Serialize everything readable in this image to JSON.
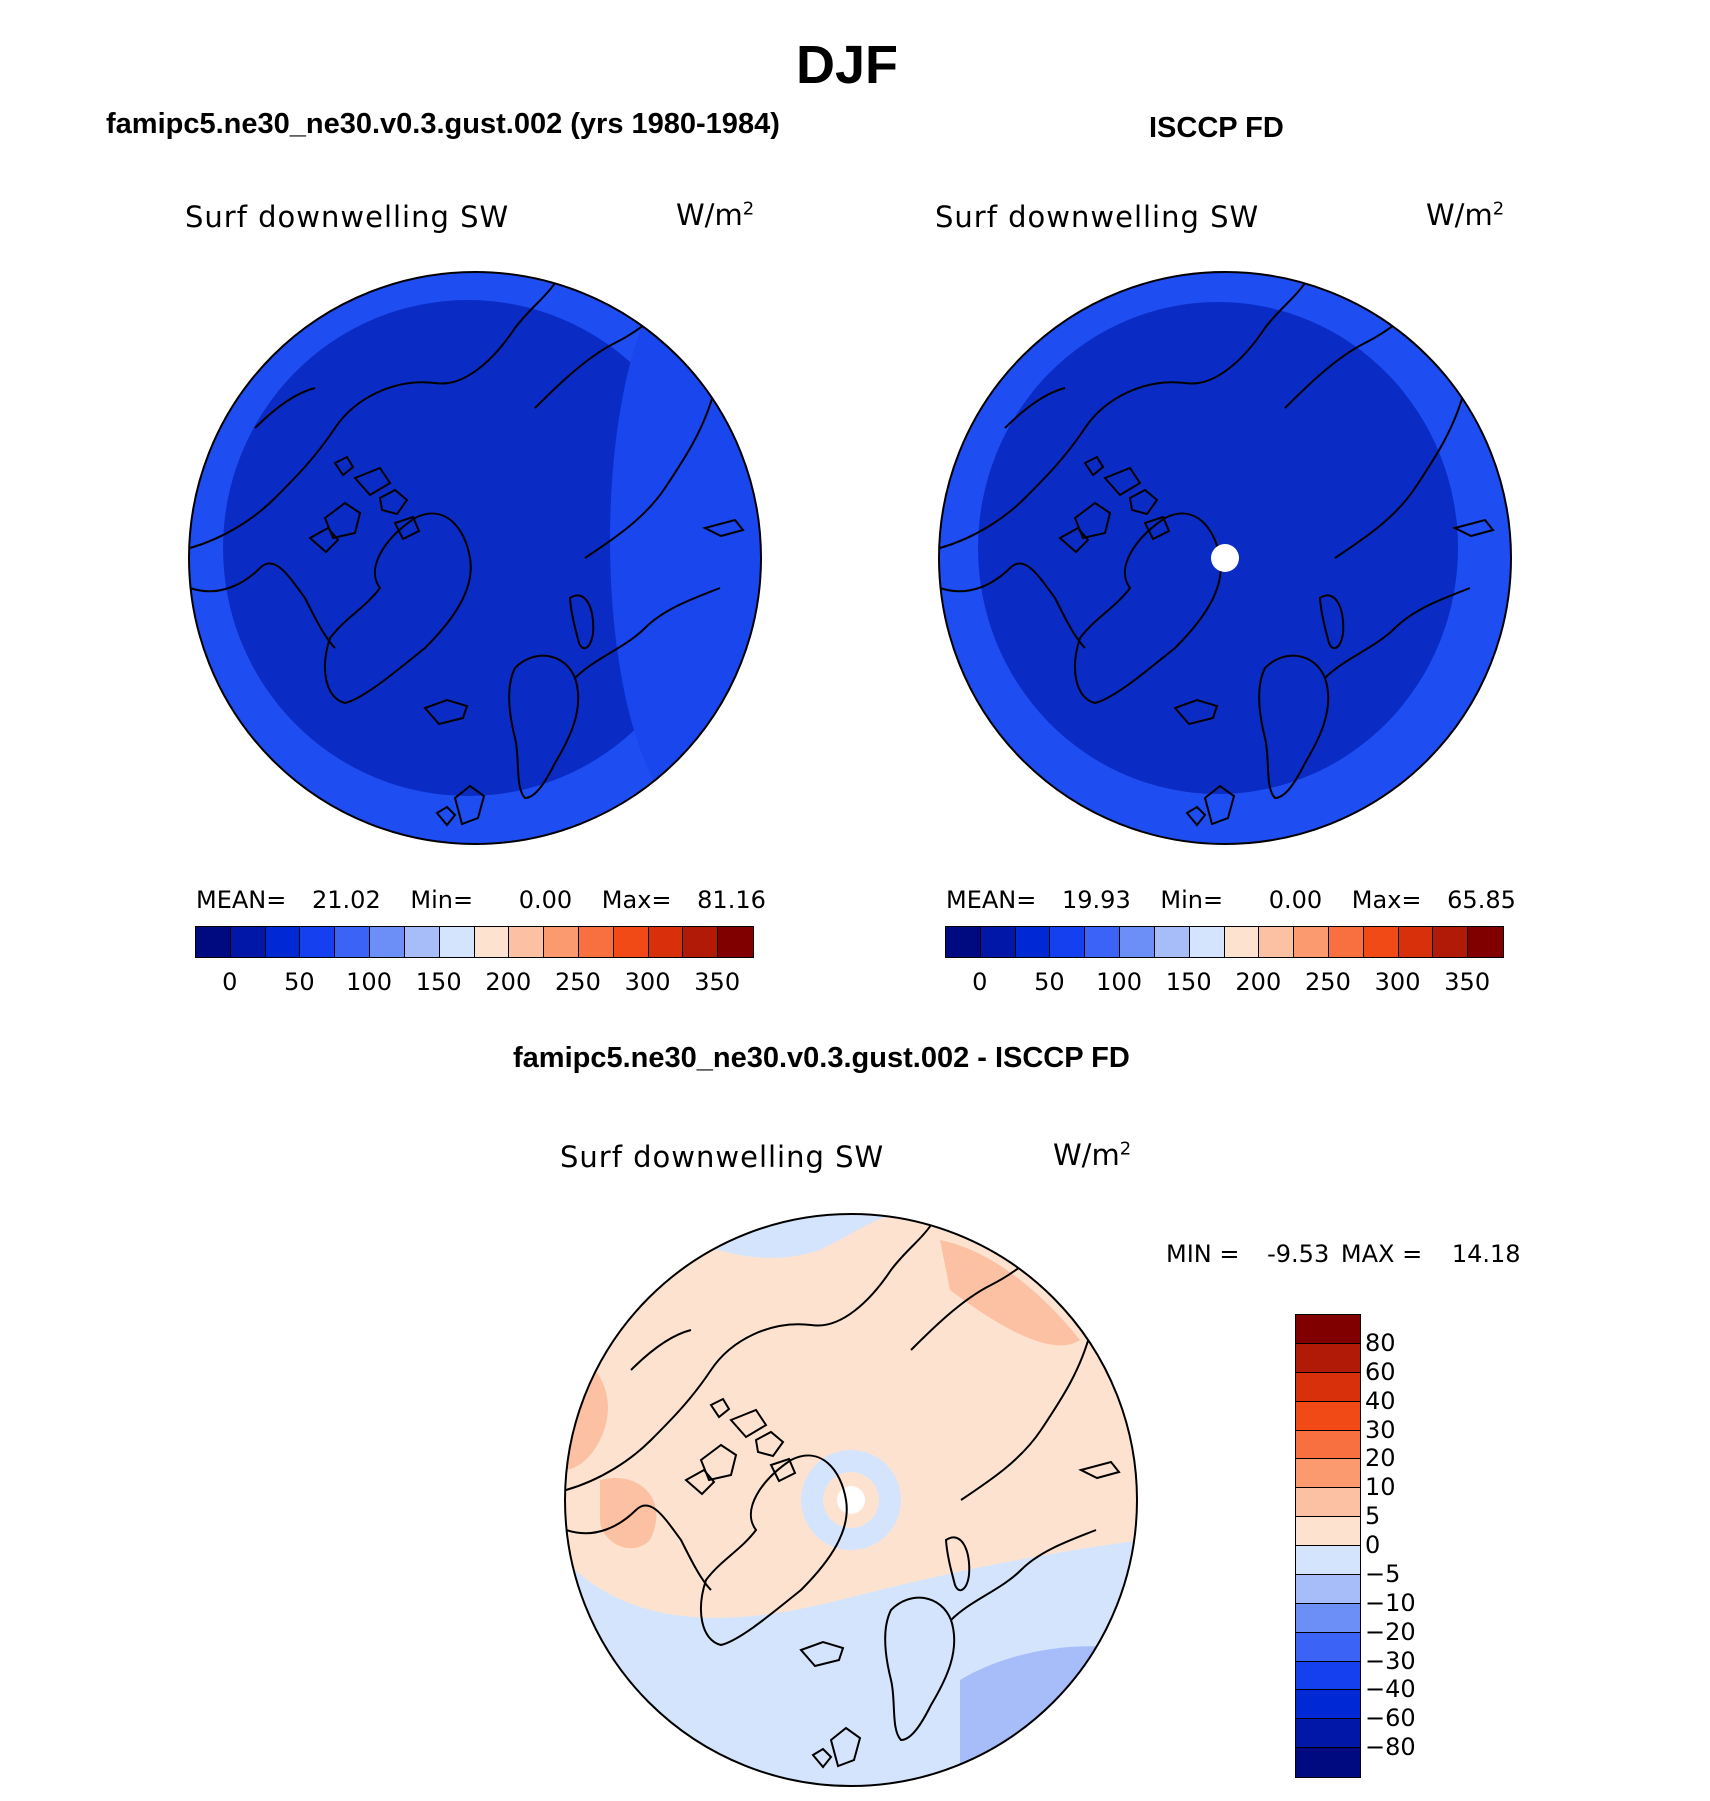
{
  "season": "DJF",
  "panels": [
    {
      "id": "model",
      "header": "famipc5.ne30_ne30.v0.3.gust.002 (yrs 1980-1984)",
      "variable": "Surf downwelling SW",
      "units": "W/m",
      "units_sup": "2",
      "mean_label": "MEAN=",
      "mean_value": "21.02",
      "min_label": "Min=",
      "min_value": "0.00",
      "max_label": "Max=",
      "max_value": "81.16"
    },
    {
      "id": "obs",
      "header": "ISCCP FD",
      "variable": "Surf downwelling SW",
      "units": "W/m",
      "units_sup": "2",
      "mean_label": "MEAN=",
      "mean_value": "19.93",
      "min_label": "Min=",
      "min_value": "0.00",
      "max_label": "Max=",
      "max_value": "65.85"
    }
  ],
  "diff": {
    "header": "famipc5.ne30_ne30.v0.3.gust.002 - ISCCP FD",
    "variable": "Surf downwelling SW",
    "units": "W/m",
    "units_sup": "2",
    "min_label": "MIN =",
    "min_value": "-9.53",
    "max_label": "MAX =",
    "max_value": "14.18"
  },
  "colorbar_abs": {
    "ticks": [
      "0",
      "50",
      "100",
      "150",
      "200",
      "250",
      "300",
      "350"
    ],
    "colors": [
      "#000a80",
      "#0017a8",
      "#0029d6",
      "#1540f0",
      "#3b63f5",
      "#6b8ff7",
      "#a6bdfa",
      "#d4e4fc",
      "#fde3cf",
      "#fcc0a2",
      "#fb9a6e",
      "#f8703f",
      "#f24a17",
      "#d8300a",
      "#b01a07",
      "#800000"
    ]
  },
  "colorbar_diff": {
    "ticks": [
      "80",
      "60",
      "40",
      "30",
      "20",
      "10",
      "5",
      "0",
      "−5",
      "−10",
      "−20",
      "−30",
      "−40",
      "−60",
      "−80"
    ],
    "colors": [
      "#800000",
      "#b01a07",
      "#d8300a",
      "#f24a17",
      "#f8703f",
      "#fb9a6e",
      "#fcc0a2",
      "#fde3cf",
      "#d4e4fc",
      "#a6bdfa",
      "#6b8ff7",
      "#3b63f5",
      "#1540f0",
      "#0029d6",
      "#0017a8",
      "#000a80"
    ]
  },
  "map_colors": {
    "abs_outer": "#1e4df2",
    "abs_inner": "#0a2cc4",
    "abs_edge": "#1a46ee",
    "diff_pos": "#fde3cf",
    "diff_pos2": "#fcc0a2",
    "diff_neg": "#d4e4fc",
    "diff_neg2": "#a6bdfa",
    "missing": "#ffffff"
  }
}
